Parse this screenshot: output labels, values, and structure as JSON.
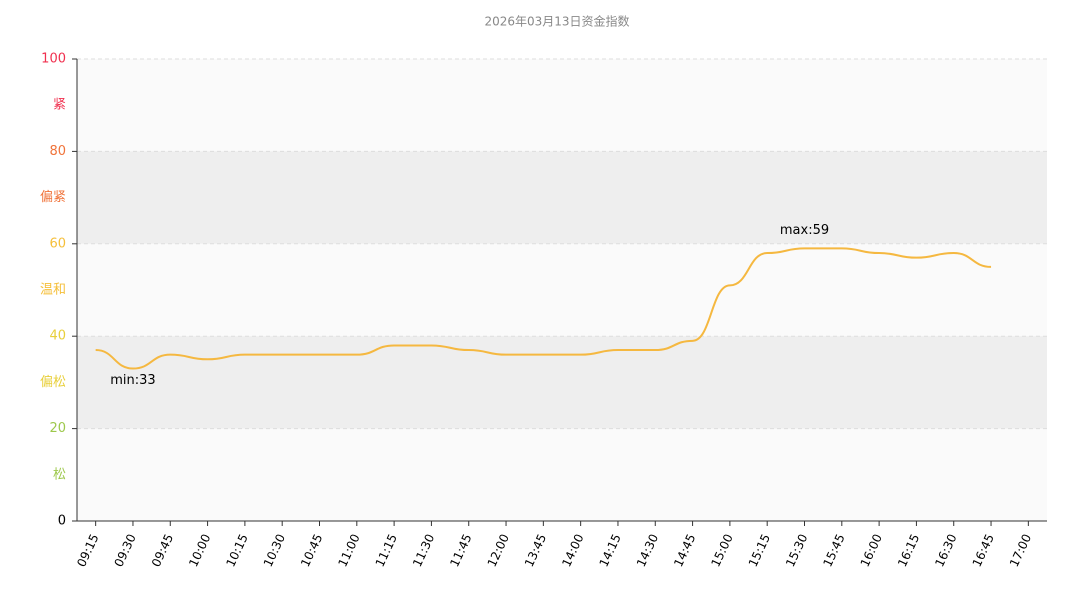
{
  "chart_data": {
    "type": "line",
    "title": "2026年03月13日资金指数",
    "categories": [
      "09:15",
      "09:30",
      "09:45",
      "10:00",
      "10:15",
      "10:30",
      "10:45",
      "11:00",
      "11:15",
      "11:30",
      "11:45",
      "12:00",
      "13:45",
      "14:00",
      "14:15",
      "14:30",
      "14:45",
      "15:00",
      "15:15",
      "15:30",
      "15:45",
      "16:00",
      "16:15",
      "16:30",
      "16:45",
      "17:00"
    ],
    "series": [
      {
        "name": "资金指数",
        "color": "#f5b840",
        "values": [
          37,
          33,
          36,
          35,
          36,
          36,
          36,
          36,
          38,
          38,
          37,
          36,
          36,
          36,
          37,
          37,
          39,
          51,
          58,
          59,
          59,
          58,
          57,
          58,
          55,
          null
        ]
      }
    ],
    "annotations": [
      "min:33",
      "max:59"
    ],
    "ylim": [
      0,
      100
    ],
    "yticks": [
      0,
      20,
      40,
      60,
      80,
      100
    ],
    "ytick_colors": [
      "#000000",
      "#9dc84c",
      "#e8cf3a",
      "#f5bf3a",
      "#f0733a",
      "#f0304f"
    ],
    "bands": [
      {
        "from": 80,
        "to": 100,
        "label": "紧",
        "color": "#f0304f",
        "fill": "#fafafa"
      },
      {
        "from": 60,
        "to": 80,
        "label": "偏紧",
        "color": "#f0733a",
        "fill": "#eeeeee"
      },
      {
        "from": 40,
        "to": 60,
        "label": "温和",
        "color": "#f5bf3a",
        "fill": "#fafafa"
      },
      {
        "from": 20,
        "to": 40,
        "label": "偏松",
        "color": "#e8cf3a",
        "fill": "#eeeeee"
      },
      {
        "from": 0,
        "to": 20,
        "label": "松",
        "color": "#9dc84c",
        "fill": "#fafafa"
      }
    ],
    "grid": true
  }
}
